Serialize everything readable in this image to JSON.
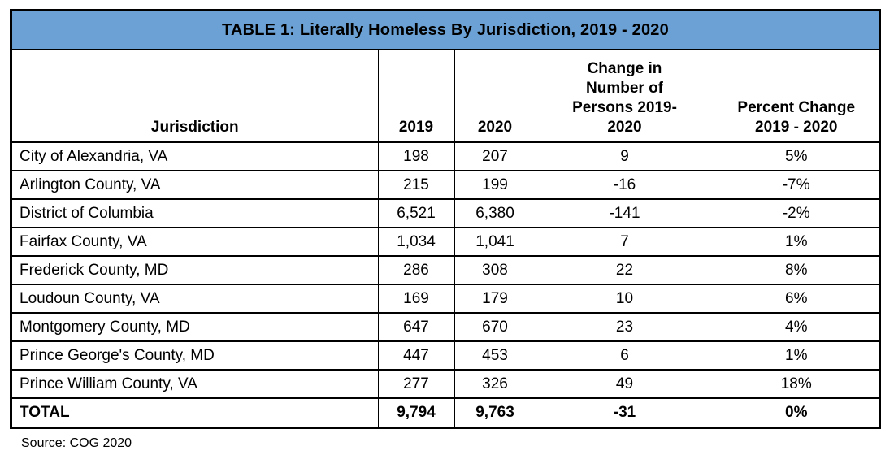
{
  "title": "TABLE 1: Literally Homeless By Jurisdiction, 2019 - 2020",
  "source_note": "Source: COG 2020",
  "colors": {
    "title_bar_bg": "#6BA1D4",
    "border": "#000000",
    "text": "#000000"
  },
  "table": {
    "columns": [
      "Jurisdiction",
      "2019",
      "2020",
      "Change in Number of Persons 2019-2020",
      "Percent Change 2019 - 2020"
    ],
    "rows": [
      [
        "City of Alexandria, VA",
        "198",
        "207",
        "9",
        "5%"
      ],
      [
        "Arlington County, VA",
        "215",
        "199",
        "-16",
        "-7%"
      ],
      [
        "District of Columbia",
        "6,521",
        "6,380",
        "-141",
        "-2%"
      ],
      [
        "Fairfax County, VA",
        "1,034",
        "1,041",
        "7",
        "1%"
      ],
      [
        "Frederick County, MD",
        "286",
        "308",
        "22",
        "8%"
      ],
      [
        "Loudoun County, VA",
        "169",
        "179",
        "10",
        "6%"
      ],
      [
        "Montgomery County, MD",
        "647",
        "670",
        "23",
        "4%"
      ],
      [
        "Prince George's County, MD",
        "447",
        "453",
        "6",
        "1%"
      ],
      [
        "Prince William County, VA",
        "277",
        "326",
        "49",
        "18%"
      ]
    ],
    "total_row": [
      "TOTAL",
      "9,794",
      "9,763",
      "-31",
      "0%"
    ]
  }
}
